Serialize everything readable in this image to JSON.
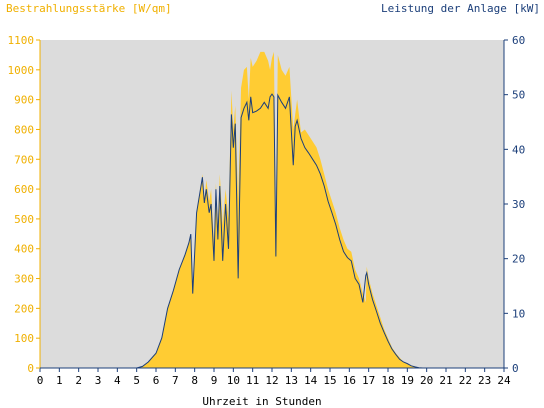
{
  "chart_data": {
    "type": "area",
    "left_axis_title": "Bestrahlungsstärke [W/qm]",
    "right_axis_title": "Leistung der Anlage [kW]",
    "xlabel": "Uhrzeit in Stunden",
    "xlim": [
      0,
      24
    ],
    "ylim_left": [
      0,
      1100
    ],
    "ylim_right": [
      0,
      60
    ],
    "x_ticks": [
      "0",
      "1",
      "2",
      "3",
      "4",
      "5",
      "6",
      "7",
      "8",
      "9",
      "10",
      "11",
      "12",
      "13",
      "14",
      "15",
      "16",
      "17",
      "18",
      "19",
      "20",
      "21",
      "22",
      "23",
      "24"
    ],
    "y_left_ticks": [
      "0",
      "100",
      "200",
      "300",
      "400",
      "500",
      "600",
      "700",
      "800",
      "900",
      "1000",
      "1100"
    ],
    "y_right_ticks": [
      "0",
      "10",
      "20",
      "30",
      "40",
      "50",
      "60"
    ],
    "grid": false,
    "colors": {
      "irradiance": "#ffcc33",
      "power": "#1c3f7a",
      "plot_background": "#dcdcdc",
      "left_axis_text": "#f0b000",
      "right_axis_text": "#1c3f7a"
    },
    "series": [
      {
        "name": "Bestrahlungsstärke [W/qm]",
        "axis": "left",
        "x": [
          0,
          5,
          5.3,
          5.6,
          6.0,
          6.3,
          6.6,
          6.9,
          7.2,
          7.5,
          7.7,
          7.8,
          7.9,
          8.1,
          8.3,
          8.4,
          8.5,
          8.6,
          8.75,
          8.85,
          9.0,
          9.1,
          9.2,
          9.3,
          9.45,
          9.6,
          9.75,
          9.9,
          10.0,
          10.1,
          10.25,
          10.4,
          10.55,
          10.7,
          10.8,
          10.9,
          11.0,
          11.2,
          11.4,
          11.6,
          11.8,
          11.9,
          12.0,
          12.1,
          12.2,
          12.3,
          12.5,
          12.7,
          12.9,
          13.1,
          13.2,
          13.3,
          13.5,
          13.7,
          13.9,
          14.1,
          14.3,
          14.5,
          14.7,
          14.9,
          15.1,
          15.3,
          15.5,
          15.7,
          15.9,
          16.1,
          16.3,
          16.5,
          16.7,
          16.85,
          16.9,
          17.0,
          17.2,
          17.4,
          17.6,
          17.8,
          18.0,
          18.2,
          18.4,
          18.6,
          18.8,
          19.0,
          19.2,
          19.4,
          19.6,
          19.8,
          20.0,
          20.2,
          24
        ],
        "values": [
          0,
          0,
          5,
          20,
          50,
          100,
          200,
          260,
          330,
          380,
          420,
          450,
          250,
          520,
          600,
          650,
          560,
          630,
          560,
          600,
          420,
          620,
          480,
          650,
          480,
          600,
          500,
          930,
          800,
          880,
          560,
          940,
          1000,
          1010,
          900,
          1040,
          1010,
          1030,
          1060,
          1060,
          1030,
          1000,
          1040,
          1060,
          450,
          1050,
          1000,
          980,
          1010,
          800,
          850,
          900,
          790,
          800,
          780,
          760,
          740,
          700,
          650,
          600,
          560,
          520,
          470,
          430,
          400,
          390,
          330,
          300,
          250,
          220,
          340,
          300,
          250,
          210,
          170,
          130,
          100,
          70,
          50,
          35,
          20,
          15,
          8,
          3,
          1,
          0,
          0,
          0,
          0
        ]
      },
      {
        "name": "Leistung der Anlage [kW]",
        "axis": "right",
        "x": [
          0,
          5,
          5.3,
          5.6,
          6.0,
          6.3,
          6.6,
          6.9,
          7.2,
          7.5,
          7.7,
          7.8,
          7.9,
          8.1,
          8.3,
          8.4,
          8.5,
          8.6,
          8.75,
          8.85,
          9.0,
          9.1,
          9.2,
          9.3,
          9.45,
          9.6,
          9.75,
          9.9,
          10.0,
          10.1,
          10.25,
          10.4,
          10.55,
          10.7,
          10.8,
          10.9,
          11.0,
          11.2,
          11.4,
          11.6,
          11.8,
          11.9,
          12.0,
          12.1,
          12.2,
          12.3,
          12.5,
          12.7,
          12.9,
          13.1,
          13.2,
          13.3,
          13.5,
          13.7,
          13.9,
          14.1,
          14.3,
          14.5,
          14.7,
          14.9,
          15.1,
          15.3,
          15.5,
          15.7,
          15.9,
          16.1,
          16.3,
          16.5,
          16.7,
          16.85,
          16.9,
          17.0,
          17.2,
          17.4,
          17.6,
          17.8,
          18.0,
          18.2,
          18.4,
          18.6,
          18.8,
          19.0,
          19.2,
          19.4,
          19.6,
          19.8,
          20.0,
          20.2,
          24
        ],
        "values": [
          0,
          0,
          0.3,
          1.1,
          2.7,
          5.5,
          10.9,
          14.2,
          18.0,
          20.7,
          22.9,
          24.5,
          13.6,
          28.4,
          32.7,
          34.9,
          30.2,
          32.7,
          28.4,
          30.0,
          19.6,
          32.7,
          23.5,
          33.3,
          19.6,
          30.0,
          21.8,
          46.4,
          40.3,
          44.7,
          16.4,
          45.8,
          47.5,
          48.6,
          45.3,
          49.6,
          46.7,
          47.0,
          47.5,
          48.6,
          47.5,
          49.6,
          50.1,
          49.6,
          20.4,
          49.9,
          48.6,
          47.5,
          49.6,
          37.1,
          44.2,
          45.3,
          42.0,
          40.3,
          39.3,
          38.2,
          37.1,
          35.5,
          33.3,
          30.5,
          28.4,
          26.2,
          23.5,
          21.3,
          20.2,
          19.6,
          16.4,
          15.3,
          12.0,
          16.9,
          17.4,
          15.3,
          12.5,
          10.4,
          8.2,
          6.5,
          4.9,
          3.5,
          2.5,
          1.6,
          1.1,
          0.8,
          0.4,
          0.2,
          0.05,
          0,
          0,
          0,
          0
        ]
      }
    ]
  }
}
